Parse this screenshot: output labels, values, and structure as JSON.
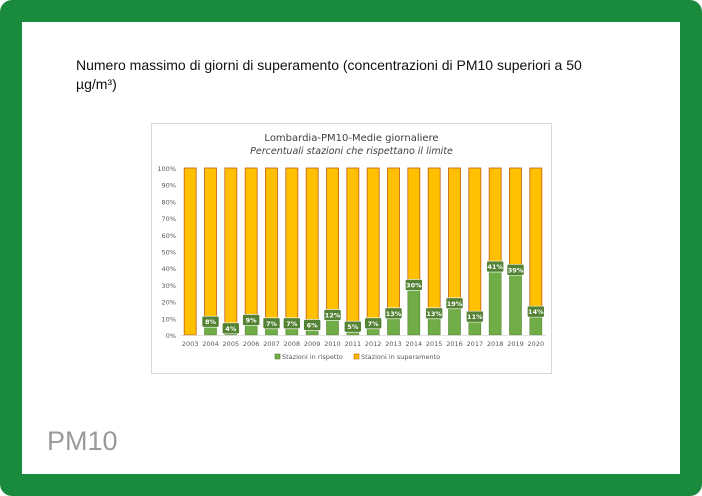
{
  "heading": "Numero massimo  di giorni di superamento (concentrazioni di PM10 superiori a 50 µg/m³)",
  "footer_label": "PM10",
  "colors": {
    "frame": "#1a8a3d",
    "rispetto": "#70ad47",
    "superamento": "#ffc000",
    "superamento_border": "#c55a11",
    "label_box": "#548235"
  },
  "chart_data": {
    "type": "bar",
    "stacked": true,
    "title": "Lombardia-PM10-Medie giornaliere",
    "subtitle": "Percentuali stazioni che rispettano il limite",
    "categories": [
      "2003",
      "2004",
      "2005",
      "2006",
      "2007",
      "2008",
      "2009",
      "2010",
      "2011",
      "2012",
      "2013",
      "2014",
      "2015",
      "2016",
      "2017",
      "2018",
      "2019",
      "2020"
    ],
    "series": [
      {
        "name": "Stazioni in rispetto",
        "values": [
          0,
          8,
          4,
          9,
          7,
          7,
          6,
          12,
          5,
          7,
          13,
          30,
          13,
          19,
          11,
          41,
          39,
          14
        ]
      },
      {
        "name": "Stazioni in superamento",
        "values": [
          100,
          92,
          96,
          91,
          93,
          93,
          94,
          88,
          95,
          93,
          87,
          70,
          87,
          81,
          89,
          59,
          61,
          86
        ]
      }
    ],
    "data_labels": [
      "",
      "8%",
      "4%",
      "9%",
      "7%",
      "7%",
      "6%",
      "12%",
      "5%",
      "7%",
      "13%",
      "30%",
      "13%",
      "19%",
      "11%",
      "41%",
      "39%",
      "14%"
    ],
    "yticks": [
      "0%",
      "10%",
      "20%",
      "30%",
      "40%",
      "50%",
      "60%",
      "70%",
      "80%",
      "90%",
      "100%"
    ],
    "ylim": [
      0,
      100
    ],
    "legend_position": "bottom"
  }
}
